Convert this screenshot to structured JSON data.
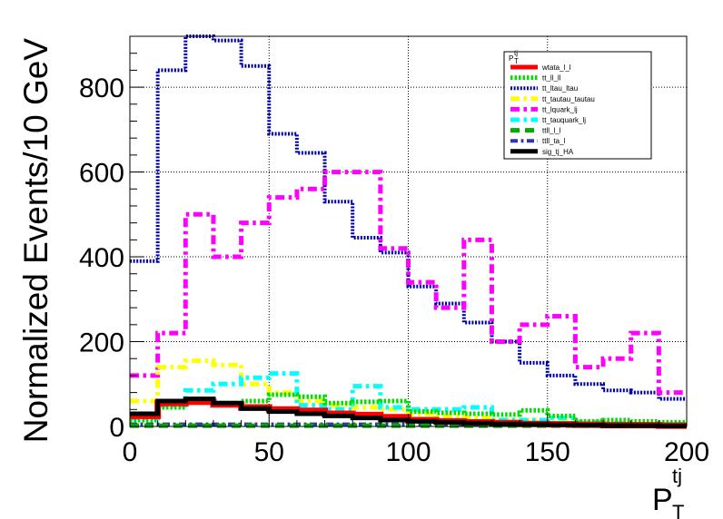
{
  "chart_data": {
    "type": "line",
    "step": true,
    "xlabel": "P",
    "xlabel_sub": "T",
    "xlabel_sup": "tj",
    "ylabel": "Normalized Events/10 GeV",
    "xlim": [
      0,
      200
    ],
    "ylim": [
      0,
      920
    ],
    "x_ticks": [
      0,
      50,
      100,
      150,
      200
    ],
    "x_tick_labels": [
      "0",
      "50",
      "100",
      "150",
      "200"
    ],
    "y_ticks": [
      0,
      200,
      400,
      600,
      800
    ],
    "y_tick_labels": [
      "0",
      "200",
      "400",
      "600",
      "800"
    ],
    "grid": true,
    "legend_title": "P",
    "legend_title_sub": "T",
    "legend_title_sup": "tj",
    "legend_position": "top-right",
    "bin_edges": [
      0,
      10,
      20,
      30,
      40,
      50,
      60,
      70,
      80,
      90,
      100,
      110,
      120,
      130,
      140,
      150,
      160,
      170,
      180,
      190,
      200
    ],
    "series": [
      {
        "name": "wtata_l_l",
        "color": "#ff0000",
        "style": "solid",
        "width": 7,
        "values": [
          25,
          55,
          58,
          52,
          45,
          40,
          37,
          30,
          27,
          22,
          15,
          12,
          10,
          8,
          6,
          5,
          4,
          3,
          3,
          2
        ]
      },
      {
        "name": "tt_ll_ll",
        "color": "#00dd00",
        "style": "dotted",
        "width": 5,
        "values": [
          15,
          45,
          60,
          55,
          60,
          75,
          70,
          55,
          58,
          60,
          35,
          32,
          30,
          28,
          38,
          25,
          12,
          15,
          12,
          10
        ]
      },
      {
        "name": "tt_ltau_ltau",
        "color": "#0000aa",
        "style": "dotted",
        "width": 4,
        "values": [
          390,
          840,
          920,
          910,
          850,
          690,
          645,
          530,
          445,
          410,
          330,
          290,
          245,
          200,
          150,
          120,
          100,
          85,
          80,
          65
        ]
      },
      {
        "name": "tt_tautau_tautau",
        "color": "#ffff00",
        "style": "dashdot",
        "width": 5,
        "values": [
          60,
          140,
          155,
          145,
          100,
          80,
          60,
          50,
          45,
          40,
          30,
          25,
          20,
          15,
          15,
          10,
          8,
          6,
          5,
          4
        ]
      },
      {
        "name": "tt_lquark_lj",
        "color": "#ff00ff",
        "style": "dashdot",
        "width": 5,
        "values": [
          120,
          220,
          500,
          400,
          480,
          540,
          560,
          600,
          600,
          420,
          340,
          280,
          440,
          200,
          240,
          260,
          140,
          160,
          220,
          80
        ]
      },
      {
        "name": "tt_tauquark_lj",
        "color": "#00ffff",
        "style": "dashdot",
        "width": 5,
        "values": [
          20,
          50,
          85,
          100,
          115,
          125,
          50,
          40,
          95,
          45,
          40,
          40,
          45,
          15,
          15,
          20,
          10,
          8,
          5,
          5
        ]
      },
      {
        "name": "ttll_l_l",
        "color": "#00aa00",
        "style": "dashed",
        "width": 5,
        "values": [
          2,
          2,
          2,
          2,
          2,
          2,
          2,
          2,
          2,
          2,
          2,
          2,
          2,
          2,
          2,
          2,
          2,
          2,
          2,
          2
        ]
      },
      {
        "name": "ttll_ta_l",
        "color": "#3333aa",
        "style": "dashdot",
        "width": 4,
        "values": [
          5,
          5,
          5,
          5,
          5,
          5,
          5,
          5,
          5,
          5,
          5,
          5,
          5,
          5,
          5,
          5,
          5,
          5,
          5,
          5
        ]
      },
      {
        "name": "sig_tj_HA",
        "color": "#000000",
        "style": "solid",
        "width": 5,
        "values": [
          30,
          60,
          65,
          55,
          42,
          35,
          30,
          25,
          20,
          15,
          12,
          10,
          8,
          6,
          5,
          4,
          3,
          2,
          2,
          1
        ]
      }
    ]
  }
}
